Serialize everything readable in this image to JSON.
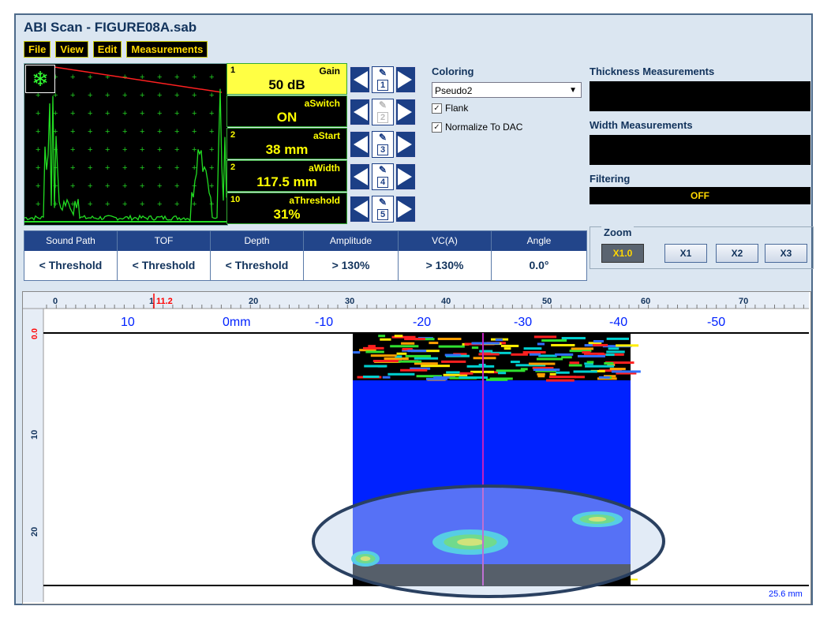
{
  "window": {
    "title": "ABI Scan - FIGURE08A.sab"
  },
  "menu": [
    {
      "label": "File"
    },
    {
      "label": "View"
    },
    {
      "label": "Edit"
    },
    {
      "label": "Measurements"
    }
  ],
  "ascan": {
    "freeze_icon": "snowflake-icon",
    "trace_color": "#22dd22",
    "gate_color": "#ff2020"
  },
  "params": [
    {
      "num": "1",
      "label": "Gain",
      "value": "50 dB",
      "key": "1"
    },
    {
      "num": "",
      "label": "aSwitch",
      "value": "ON",
      "key": "2"
    },
    {
      "num": "2",
      "label": "aStart",
      "value": "38 mm",
      "key": "3"
    },
    {
      "num": "2",
      "label": "aWidth",
      "value": "117.5 mm",
      "key": "4"
    },
    {
      "num": "10",
      "label": "aThreshold",
      "value": "31%",
      "key": "5"
    }
  ],
  "coloring": {
    "header": "Coloring",
    "selected": "Pseudo2",
    "flank_label": "Flank",
    "normalize_label": "Normalize To DAC"
  },
  "right_panel": {
    "thickness_header": "Thickness Measurements",
    "width_header": "Width Measurements",
    "filtering_header": "Filtering",
    "filtering_value": "OFF"
  },
  "zoom": {
    "label": "Zoom",
    "buttons": [
      "X1.0",
      "X1",
      "X2",
      "X3"
    ]
  },
  "measurements": {
    "headers": [
      "Sound Path",
      "TOF",
      "Depth",
      "Amplitude",
      "VC(A)",
      "Angle"
    ],
    "values": [
      "< Threshold",
      "< Threshold",
      "< Threshold",
      "> 130%",
      "> 130%",
      "0.0°"
    ]
  },
  "bscan": {
    "top_ruler": [
      "0",
      "10",
      "20",
      "30",
      "40",
      "50",
      "60",
      "70"
    ],
    "cursor_label": "11.2",
    "probe_ruler": [
      "10",
      "0mm",
      "-10",
      "-20",
      "-30",
      "-40",
      "-50"
    ],
    "depth_ruler": [
      "0.0",
      "10",
      "20"
    ],
    "bottom_label": "25.6 mm",
    "accent_color": "#0022ff"
  }
}
